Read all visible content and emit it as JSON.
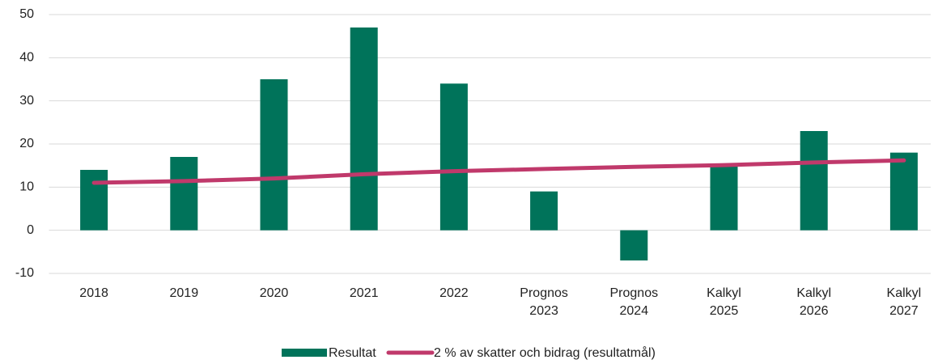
{
  "chart_data": {
    "type": "bar",
    "categories": [
      "2018",
      "2019",
      "2020",
      "2021",
      "2022",
      "Prognos 2023",
      "Prognos 2024",
      "Kalkyl 2025",
      "Kalkyl 2026",
      "Kalkyl 2027"
    ],
    "series": [
      {
        "name": "Resultat",
        "type": "bar",
        "color": "#00735a",
        "values": [
          14,
          17,
          35,
          47,
          34,
          9,
          -7,
          15,
          23,
          18
        ]
      },
      {
        "name": "2 % av skatter och bidrag (resultatmål)",
        "type": "line",
        "color": "#c0396b",
        "values": [
          11,
          11.4,
          12,
          13,
          13.7,
          14.2,
          14.7,
          15.1,
          15.7,
          16.2
        ]
      }
    ],
    "ylim": [
      -10,
      50
    ],
    "yticks": [
      -10,
      0,
      10,
      20,
      30,
      40,
      50
    ],
    "grid": true,
    "legend": "bottom"
  }
}
